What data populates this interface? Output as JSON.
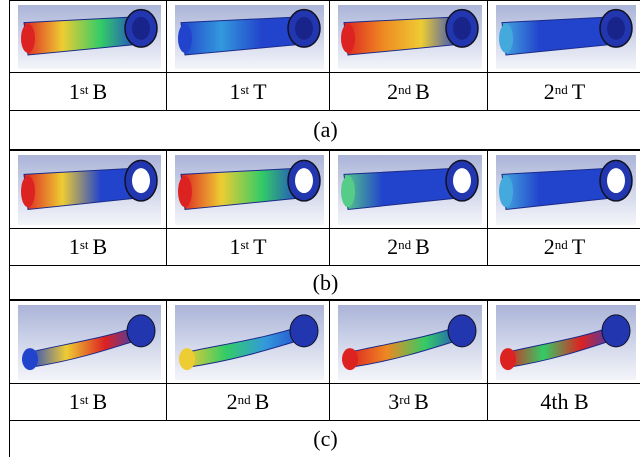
{
  "panels": [
    {
      "caption": "(a)",
      "modes": [
        {
          "number": "1",
          "suffix": "st",
          "mode": "B"
        },
        {
          "number": "1",
          "suffix": "st",
          "mode": "T"
        },
        {
          "number": "2",
          "suffix": "nd",
          "mode": "B"
        },
        {
          "number": "2",
          "suffix": "nd",
          "mode": "T"
        }
      ]
    },
    {
      "caption": "(b)",
      "modes": [
        {
          "number": "1",
          "suffix": "st",
          "mode": "B"
        },
        {
          "number": "1",
          "suffix": "st",
          "mode": "T"
        },
        {
          "number": "2",
          "suffix": "nd",
          "mode": "B"
        },
        {
          "number": "2",
          "suffix": "nd",
          "mode": "T"
        }
      ]
    },
    {
      "caption": "(c)",
      "modes": [
        {
          "number": "1",
          "suffix": "st",
          "mode": "B"
        },
        {
          "number": "2",
          "suffix": "nd",
          "mode": "B"
        },
        {
          "number": "3",
          "suffix": "rd",
          "mode": "B"
        },
        {
          "text": "4th B"
        }
      ]
    }
  ]
}
